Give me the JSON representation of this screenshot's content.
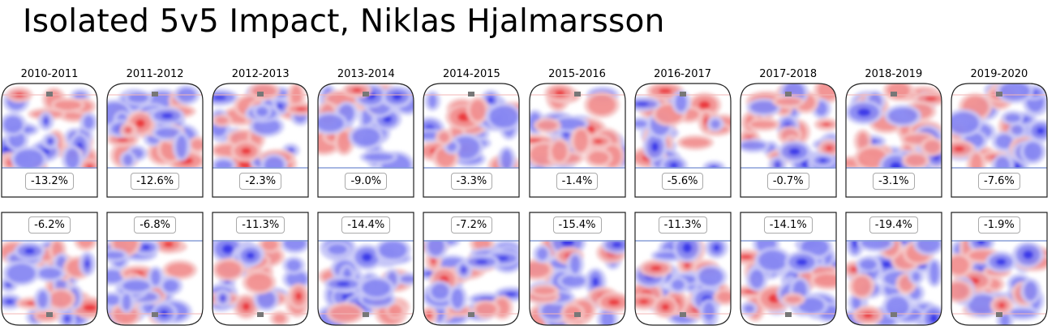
{
  "title": "Isolated 5v5 Impact, Niklas Hjalmarsson",
  "colors": {
    "positive": "#e8151b",
    "negative": "#1a1ae6",
    "line_blue": "#8a9fd8",
    "line_red": "#f3b6b6",
    "net": "#777777"
  },
  "chart_data": {
    "type": "heatmap",
    "title": "Isolated 5v5 Impact, Niklas Hjalmarsson",
    "seasons": [
      "2010-2011",
      "2011-2012",
      "2012-2013",
      "2013-2014",
      "2014-2015",
      "2015-2016",
      "2016-2017",
      "2017-2018",
      "2018-2019",
      "2019-2020"
    ],
    "offence_values": [
      "-13.2%",
      "-12.6%",
      "-2.3%",
      "-9.0%",
      "-3.3%",
      "-1.4%",
      "-5.6%",
      "-0.7%",
      "-3.1%",
      "-7.6%"
    ],
    "defence_values": [
      "-6.2%",
      "-6.8%",
      "-11.3%",
      "-14.4%",
      "-7.2%",
      "-15.4%",
      "-11.3%",
      "-14.1%",
      "-19.4%",
      "-1.9%"
    ],
    "offence_values_numeric": [
      -13.2,
      -12.6,
      -2.3,
      -9.0,
      -3.3,
      -1.4,
      -5.6,
      -0.7,
      -3.1,
      -7.6
    ],
    "defence_values_numeric": [
      -6.2,
      -6.8,
      -11.3,
      -14.4,
      -7.2,
      -15.4,
      -11.3,
      -14.1,
      -19.4,
      -1.9
    ],
    "colorscale": "diverging red (more) / blue (less)"
  }
}
